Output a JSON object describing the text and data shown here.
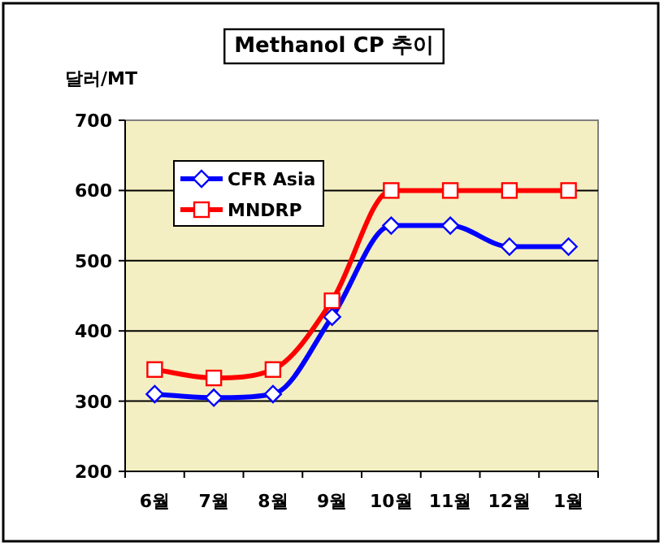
{
  "chart_data": {
    "type": "line",
    "title": "Methanol CP 추이",
    "ylabel": "달러/MT",
    "categories": [
      "6월",
      "7월",
      "8월",
      "9월",
      "10월",
      "11월",
      "12월",
      "1월"
    ],
    "series": [
      {
        "name": "CFR Asia",
        "color": "#0000ff",
        "marker": "diamond",
        "values": [
          310,
          305,
          310,
          420,
          550,
          550,
          520,
          520
        ]
      },
      {
        "name": "MNDRP",
        "color": "#ff0000",
        "marker": "square",
        "values": [
          345,
          333,
          345,
          443,
          600,
          600,
          600,
          600
        ]
      }
    ],
    "ylim": [
      200,
      700
    ],
    "yticks": [
      200,
      300,
      400,
      500,
      600,
      700
    ],
    "grid": "y",
    "legend": "top left",
    "line_style": "solid"
  }
}
